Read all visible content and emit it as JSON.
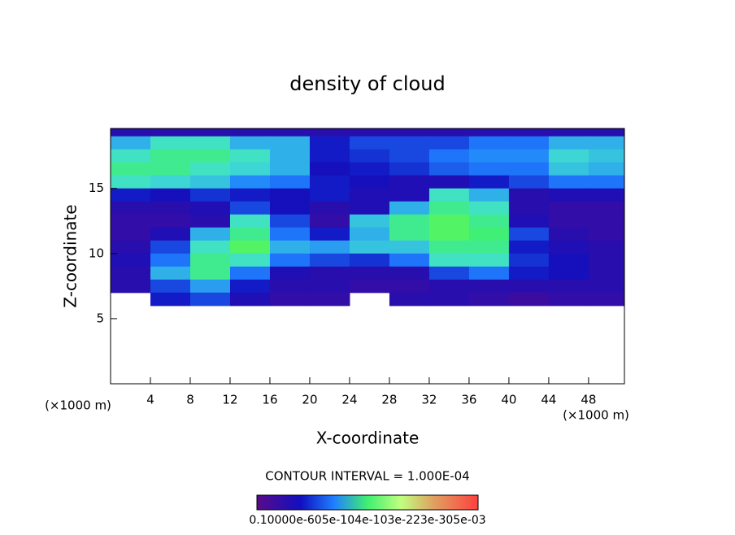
{
  "chart_data": {
    "type": "contour",
    "title": "density of cloud",
    "xlabel": "X-coordinate",
    "ylabel": "Z-coordinate",
    "x_unit_label": "(×1000 m)",
    "y_unit_label": "(×1000 m)",
    "contour_interval": "CONTOUR INTERVAL = 1.000E-04",
    "colorbar_label": "0.10000e-605e-104e-103e-223e-305e-03",
    "xlim": [
      0,
      51.6
    ],
    "ylim": [
      0,
      19.6
    ],
    "xticks": [
      4,
      8,
      12,
      16,
      20,
      24,
      28,
      32,
      36,
      40,
      44,
      48
    ],
    "yticks": [
      5,
      10,
      15
    ],
    "x": [
      2,
      6,
      10,
      14,
      18,
      22,
      26,
      30,
      34,
      38,
      42,
      46,
      50
    ],
    "y": [
      19.5,
      18.5,
      17.5,
      16.5,
      15.5,
      14.5,
      13.5,
      12.5,
      11.5,
      10.5,
      9.5,
      8.5,
      7.5,
      6.5
    ],
    "z": [
      [
        0.5,
        0.5,
        0.5,
        0.5,
        0.5,
        0.5,
        0.5,
        0.5,
        0.5,
        0.5,
        0.5,
        0.5,
        0.5
      ],
      [
        1.5,
        1.8,
        1.8,
        1.5,
        1.5,
        0.8,
        1.0,
        1.0,
        1.0,
        1.2,
        1.2,
        1.5,
        1.5
      ],
      [
        1.8,
        2.0,
        2.0,
        1.8,
        1.5,
        0.8,
        0.9,
        1.0,
        1.2,
        1.3,
        1.3,
        1.7,
        1.6
      ],
      [
        2.0,
        2.0,
        1.8,
        1.7,
        1.5,
        0.7,
        0.8,
        0.9,
        1.1,
        1.2,
        1.2,
        1.6,
        1.5
      ],
      [
        1.8,
        1.7,
        1.6,
        1.3,
        1.2,
        0.8,
        0.7,
        0.6,
        0.6,
        0.8,
        1.0,
        1.2,
        1.2
      ],
      [
        0.8,
        0.7,
        0.9,
        0.8,
        0.7,
        0.8,
        0.6,
        0.6,
        1.8,
        1.5,
        0.5,
        0.6,
        0.6
      ],
      [
        0.5,
        0.5,
        0.6,
        1.0,
        0.7,
        0.5,
        0.6,
        1.5,
        2.0,
        1.8,
        0.5,
        0.4,
        0.4
      ],
      [
        0.4,
        0.4,
        0.5,
        1.8,
        1.0,
        0.4,
        1.6,
        2.0,
        2.2,
        2.0,
        0.6,
        0.4,
        0.4
      ],
      [
        0.4,
        0.6,
        1.5,
        2.0,
        1.2,
        0.8,
        1.5,
        2.0,
        2.2,
        2.1,
        1.0,
        0.5,
        0.4
      ],
      [
        0.5,
        1.0,
        1.8,
        2.2,
        1.5,
        1.4,
        1.6,
        1.6,
        2.0,
        2.0,
        0.8,
        0.6,
        0.5
      ],
      [
        0.6,
        1.2,
        2.0,
        1.8,
        1.2,
        1.0,
        0.9,
        1.2,
        1.8,
        1.8,
        0.9,
        0.7,
        0.5
      ],
      [
        0.5,
        1.5,
        2.0,
        1.2,
        0.6,
        0.5,
        0.5,
        0.5,
        1.0,
        1.2,
        0.8,
        0.7,
        0.5
      ],
      [
        0.5,
        1.0,
        1.4,
        0.8,
        0.5,
        0.5,
        0.4,
        0.4,
        0.5,
        0.5,
        0.5,
        0.5,
        0.5
      ],
      [
        null,
        0.8,
        1.0,
        0.6,
        0.4,
        0.4,
        null,
        0.5,
        0.5,
        0.4,
        0.3,
        0.4,
        0.4
      ]
    ]
  }
}
